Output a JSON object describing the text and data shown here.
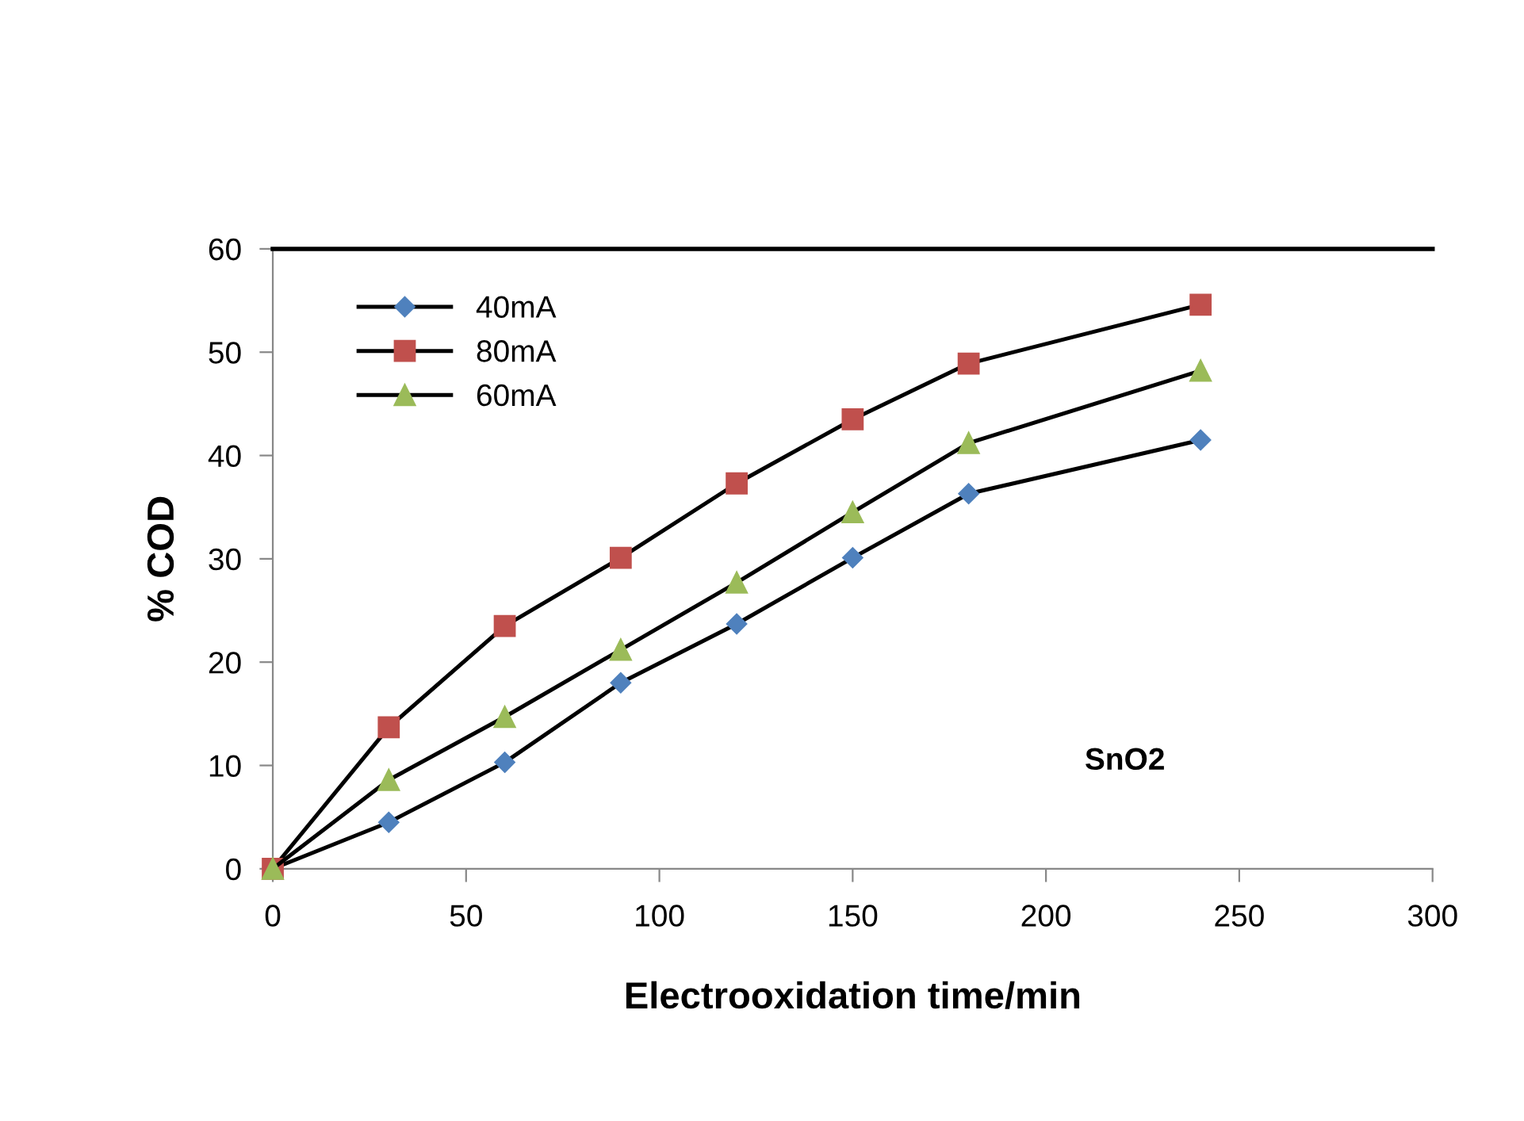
{
  "chart_data": {
    "type": "line",
    "xlabel": "Electrooxidation time/min",
    "ylabel": "% COD",
    "annotations": [
      "SnO2"
    ],
    "x": [
      0,
      30,
      60,
      90,
      120,
      150,
      180,
      240
    ],
    "series": [
      {
        "name": "40mA",
        "color": "#4f81bd",
        "marker": "diamond",
        "values": [
          0,
          4.5,
          10.3,
          18.0,
          23.7,
          30.1,
          36.3,
          41.5
        ]
      },
      {
        "name": "80mA",
        "color": "#c0504d",
        "marker": "square",
        "values": [
          0,
          13.7,
          23.5,
          30.1,
          37.3,
          43.5,
          48.9,
          54.6
        ]
      },
      {
        "name": "60mA",
        "color": "#9bbb59",
        "marker": "triangle",
        "values": [
          0,
          8.6,
          14.7,
          21.2,
          27.7,
          34.5,
          41.2,
          48.2
        ]
      }
    ],
    "xlim": [
      0,
      300
    ],
    "xticks": [
      0,
      50,
      100,
      150,
      200,
      250,
      300
    ],
    "ylim": [
      0,
      60
    ],
    "yticks": [
      0,
      10,
      20,
      30,
      40,
      50,
      60
    ],
    "grid": false,
    "legend": "top left",
    "line_style": "solid"
  }
}
